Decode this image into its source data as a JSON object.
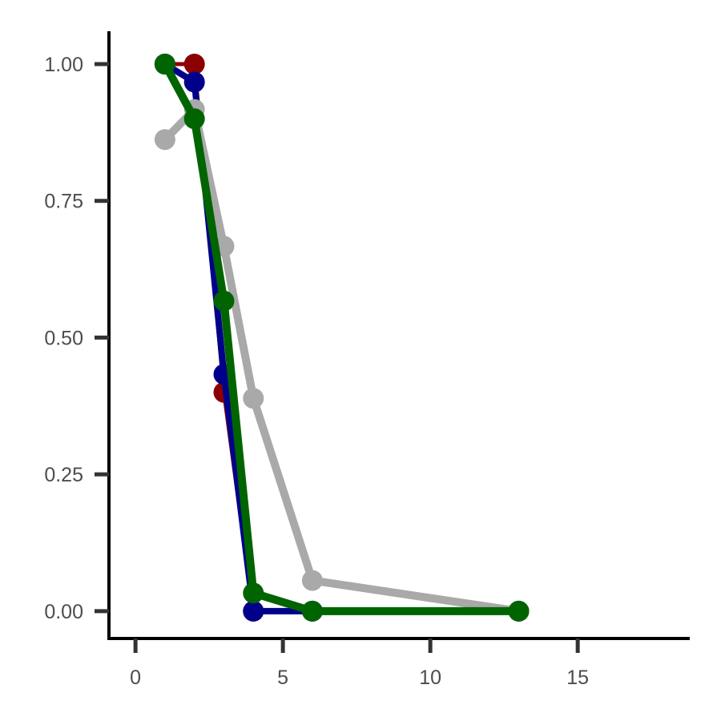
{
  "chart_data": {
    "type": "line",
    "title": "",
    "xlabel": "",
    "ylabel": "",
    "xlim": [
      -0.9,
      18.8
    ],
    "ylim": [
      -0.05,
      1.06
    ],
    "x_ticks": [
      0,
      5,
      10,
      15
    ],
    "x_tick_labels": [
      "0",
      "5",
      "10",
      "15"
    ],
    "y_ticks": [
      0,
      0.25,
      0.5,
      0.75,
      1.0
    ],
    "y_tick_labels": [
      "0.00",
      "0.25",
      "0.50",
      "0.75",
      "1.00"
    ],
    "grid": false,
    "legend": "none",
    "series": [
      {
        "color": "#8b0000",
        "x": [
          1,
          2,
          3,
          4,
          6,
          13
        ],
        "y": [
          1.0,
          1.0,
          0.4,
          0.0,
          0.0,
          0.0
        ]
      },
      {
        "color": "#00008b",
        "x": [
          1,
          2,
          3,
          4,
          6,
          13
        ],
        "y": [
          1.0,
          0.967,
          0.433,
          0.0,
          0.0,
          0.0
        ]
      },
      {
        "color": "#a9a9a9",
        "x": [
          1,
          2,
          3,
          4,
          6,
          13
        ],
        "y": [
          0.862,
          0.917,
          0.667,
          0.389,
          0.056,
          0.0
        ]
      },
      {
        "color": "#006400",
        "x": [
          1,
          2,
          3,
          4,
          6,
          13
        ],
        "y": [
          1.0,
          0.9,
          0.567,
          0.033,
          0.0,
          0.0
        ]
      }
    ]
  }
}
